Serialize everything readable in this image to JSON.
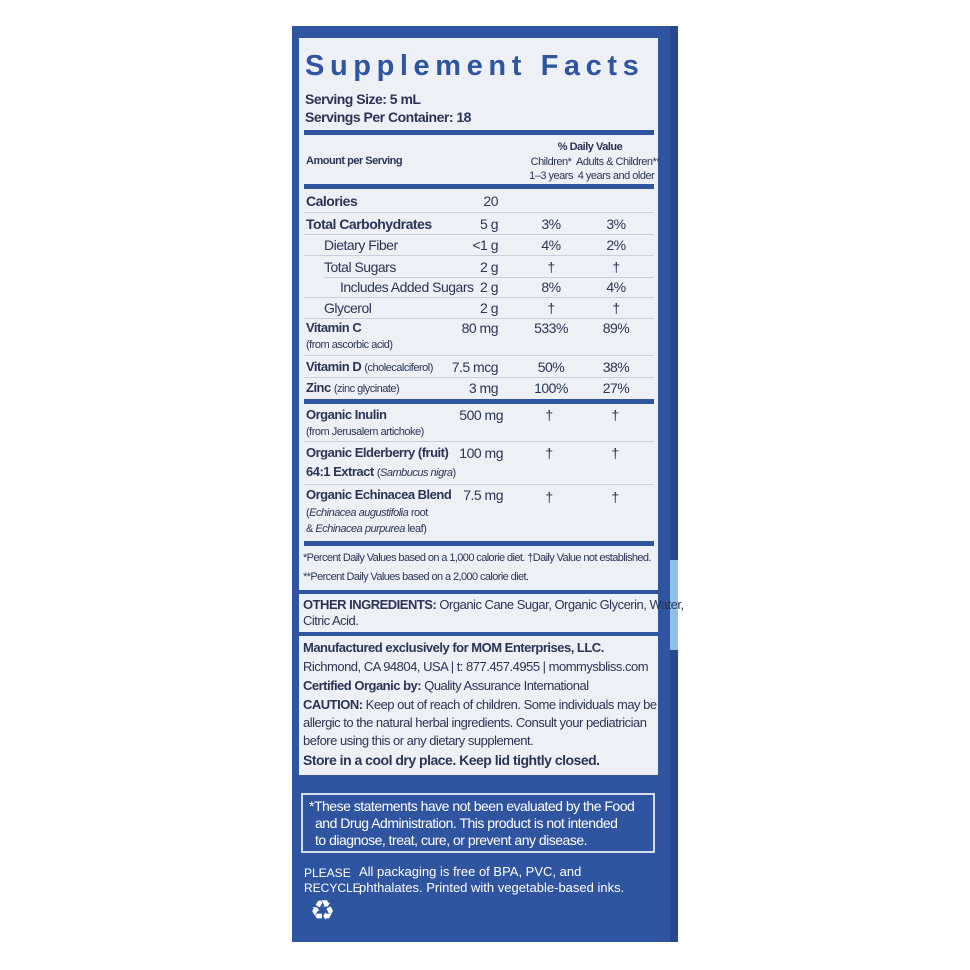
{
  "title": "Supplement Facts",
  "serving_size": "Serving Size: 5 mL",
  "servings_per_container": "Servings Per Container: 18",
  "header": {
    "amount": "Amount per Serving",
    "dv": "% Daily Value",
    "children": "Children*",
    "children_age": "1–3 years",
    "adults": "Adults & Children**",
    "adults_age": "4 years and older"
  },
  "rows": [
    {
      "name": "Calories",
      "amount": "20",
      "children": "",
      "adults": ""
    },
    {
      "name": "Total Carbohydrates",
      "amount": "5 g",
      "children": "3%",
      "adults": "3%"
    },
    {
      "name": "Dietary Fiber",
      "amount": "<1 g",
      "children": "4%",
      "adults": "2%"
    },
    {
      "name": "Total Sugars",
      "amount": "2 g",
      "children": "†",
      "adults": "†"
    },
    {
      "name": "Includes Added Sugars",
      "amount": "2 g",
      "children": "8%",
      "adults": "4%"
    },
    {
      "name": "Glycerol",
      "amount": "2 g",
      "children": "†",
      "adults": "†"
    },
    {
      "name": "Vitamin C",
      "sub": "(from ascorbic acid)",
      "amount": "80 mg",
      "children": "533%",
      "adults": "89%"
    },
    {
      "name": "Vitamin D",
      "sub": "(cholecalciferol)",
      "amount": "7.5 mcg",
      "children": "50%",
      "adults": "38%"
    },
    {
      "name": "Zinc",
      "sub": "(zinc glycinate)",
      "amount": "3 mg",
      "children": "100%",
      "adults": "27%"
    },
    {
      "name": "Organic Inulin",
      "sub": "(from Jerusalem artichoke)",
      "amount": "500 mg",
      "children": "†",
      "adults": "†"
    },
    {
      "name": "Organic Elderberry (fruit)",
      "name2": "64:1 Extract",
      "sub": "Sambucus nigra",
      "amount": "100 mg",
      "children": "†",
      "adults": "†"
    },
    {
      "name": "Organic Echinacea Blend",
      "sub1a": "Echinacea augustifolia",
      "sub1b": "root",
      "sub2a": "Echinacea purpurea",
      "sub2b": "leaf",
      "amount": "7.5 mg",
      "children": "†",
      "adults": "†"
    }
  ],
  "footnote1": "*Percent Daily Values based on a 1,000 calorie diet. †Daily Value not established.",
  "footnote2": "**Percent Daily Values based on a 2,000 calorie diet.",
  "other_ingredients_label": "OTHER INGREDIENTS:",
  "other_ingredients": "Organic Cane Sugar, Organic Glycerin, Water,",
  "other_ingredients2": "Citric Acid.",
  "manufacturer": "Manufactured exclusively for MOM Enterprises, LLC.",
  "address": "Richmond, CA 94804, USA | t: 877.457.4955 | mommysbliss.com",
  "certified_label": "Certified Organic by:",
  "certified": "Quality Assurance International",
  "caution_label": "CAUTION:",
  "caution1": "Keep out of reach of children. Some individuals may be",
  "caution2": "allergic to the natural herbal ingredients. Consult your pediatrician",
  "caution3": "before using this or any dietary supplement.",
  "storage": "Store in a cool dry place. Keep lid tightly closed.",
  "disclaimer": [
    "*These statements have not been evaluated by the Food",
    "and Drug Administration. This product is not intended",
    "to diagnose, treat, cure, or prevent any disease."
  ],
  "recycle_label": [
    "PLEASE",
    "RECYCLE"
  ],
  "packaging": [
    "All packaging is free of BPA, PVC, and",
    "phthalates. Printed with vegetable-based inks."
  ],
  "icons": {
    "recycle": "recycle-icon"
  },
  "colors": {
    "brand_blue": "#2f55a0",
    "panel": "#edf1f5",
    "text": "#2b3458"
  }
}
